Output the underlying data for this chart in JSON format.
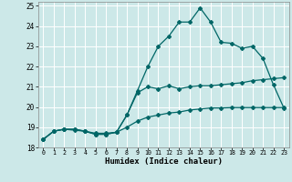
{
  "xlabel": "Humidex (Indice chaleur)",
  "xlim": [
    -0.5,
    23.5
  ],
  "ylim": [
    18,
    25.2
  ],
  "yticks": [
    18,
    19,
    20,
    21,
    22,
    23,
    24,
    25
  ],
  "xticks": [
    0,
    1,
    2,
    3,
    4,
    5,
    6,
    7,
    8,
    9,
    10,
    11,
    12,
    13,
    14,
    15,
    16,
    17,
    18,
    19,
    20,
    21,
    22,
    23
  ],
  "bg_color": "#cce8e8",
  "grid_color": "#ffffff",
  "line_color": "#006666",
  "line1_y": [
    18.4,
    18.8,
    18.9,
    18.9,
    18.8,
    18.7,
    18.7,
    18.75,
    19.6,
    20.7,
    21.0,
    20.9,
    21.05,
    20.9,
    21.0,
    21.05,
    21.05,
    21.1,
    21.15,
    21.2,
    21.3,
    21.35,
    21.4,
    21.45
  ],
  "line2_y": [
    18.4,
    18.8,
    18.9,
    18.9,
    18.8,
    18.65,
    18.65,
    18.75,
    19.6,
    20.8,
    22.0,
    23.0,
    23.5,
    24.2,
    24.2,
    24.9,
    24.2,
    23.2,
    23.15,
    22.9,
    23.0,
    22.4,
    21.1,
    19.95
  ],
  "line3_y": [
    18.4,
    18.8,
    18.9,
    18.85,
    18.8,
    18.65,
    18.65,
    18.75,
    19.0,
    19.3,
    19.5,
    19.6,
    19.7,
    19.75,
    19.85,
    19.9,
    19.95,
    19.95,
    19.97,
    19.97,
    19.97,
    19.97,
    19.97,
    19.97
  ]
}
